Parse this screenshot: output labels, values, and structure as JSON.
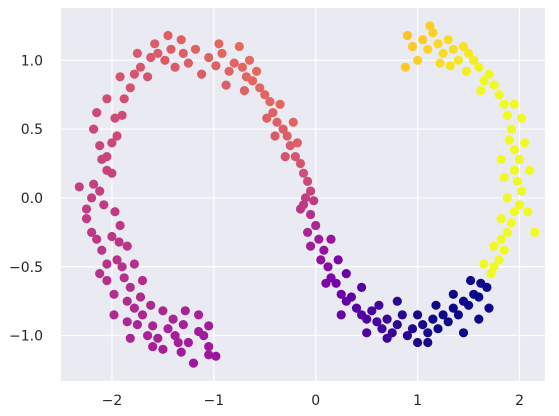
{
  "chart_data": {
    "type": "scatter",
    "title": "",
    "xlabel": "",
    "ylabel": "",
    "xlim": [
      -2.5,
      2.25
    ],
    "ylim": [
      -1.33,
      1.38
    ],
    "x_ticks": [
      -2,
      -1,
      0,
      1,
      2
    ],
    "x_tick_labels": [
      "−2",
      "−1",
      "0",
      "1",
      "2"
    ],
    "y_ticks": [
      -1.0,
      -0.5,
      0.0,
      0.5,
      1.0
    ],
    "y_tick_labels": [
      "−1.0",
      "−0.5",
      "0.0",
      "0.5",
      "1.0"
    ],
    "grid": true,
    "background_color": "#eaeaf2",
    "grid_color": "#ffffff",
    "colormap": "plasma",
    "colormap_stops": [
      "#0d0887",
      "#46039f",
      "#7201a8",
      "#9c179e",
      "#bd3786",
      "#d8576b",
      "#ed7953",
      "#fb9f3a",
      "#fdca26",
      "#f0f921"
    ],
    "series": [
      {
        "points": [
          [
            -1.2,
            -1.2
          ],
          [
            -1.05,
            -1.14
          ],
          [
            -0.98,
            -1.15
          ],
          [
            -1.05,
            -1.08
          ],
          [
            -1.1,
            -1.0
          ],
          [
            -1.05,
            -0.93
          ],
          [
            -1.15,
            -0.97
          ],
          [
            -1.25,
            -1.05
          ],
          [
            -1.3,
            -0.92
          ],
          [
            -1.35,
            -1.05
          ],
          [
            -1.38,
            -1.0
          ],
          [
            -1.45,
            -0.95
          ],
          [
            -1.5,
            -1.1
          ],
          [
            -1.55,
            -1.02
          ],
          [
            -1.6,
            -0.93
          ],
          [
            -1.65,
            -1.0
          ],
          [
            -1.7,
            -0.85
          ],
          [
            -1.75,
            -0.92
          ],
          [
            -1.78,
            -0.8
          ],
          [
            -1.85,
            -0.75
          ],
          [
            -1.82,
            -0.65
          ],
          [
            -1.88,
            -0.58
          ],
          [
            -1.9,
            -0.5
          ],
          [
            -1.95,
            -0.45
          ],
          [
            -2.05,
            -0.48
          ],
          [
            -2.1,
            -0.38
          ],
          [
            -2.15,
            -0.3
          ],
          [
            -2.2,
            -0.25
          ],
          [
            -2.05,
            -0.6
          ],
          [
            -1.98,
            -0.7
          ],
          [
            -1.93,
            -0.32
          ],
          [
            -2.0,
            -0.28
          ],
          [
            -1.92,
            -0.2
          ],
          [
            -1.97,
            -0.1
          ],
          [
            -2.08,
            -0.05
          ],
          [
            -2.12,
            0.05
          ],
          [
            -2.18,
            0.1
          ],
          [
            -2.25,
            -0.08
          ],
          [
            -2.32,
            0.08
          ],
          [
            -2.05,
            0.2
          ],
          [
            -2.1,
            0.28
          ],
          [
            -2.12,
            0.38
          ],
          [
            -2.18,
            0.5
          ],
          [
            -2.0,
            0.18
          ],
          [
            -2.05,
            0.3
          ],
          [
            -2.0,
            0.4
          ],
          [
            -1.95,
            0.45
          ],
          [
            -1.97,
            0.58
          ],
          [
            -1.9,
            0.6
          ],
          [
            -1.88,
            0.72
          ],
          [
            -1.82,
            0.8
          ],
          [
            -1.78,
            0.9
          ],
          [
            -1.72,
            0.95
          ],
          [
            -1.65,
            0.88
          ],
          [
            -1.62,
            1.02
          ],
          [
            -1.55,
            1.05
          ],
          [
            -1.48,
            1.0
          ],
          [
            -1.42,
            1.08
          ],
          [
            -1.38,
            0.95
          ],
          [
            -1.3,
            1.05
          ],
          [
            -1.25,
            0.98
          ],
          [
            -1.18,
            1.08
          ],
          [
            -1.12,
            0.9
          ],
          [
            -1.05,
            1.02
          ],
          [
            -0.98,
            0.96
          ],
          [
            -0.92,
            1.05
          ],
          [
            -0.85,
            0.92
          ],
          [
            -0.8,
            0.98
          ],
          [
            -0.72,
            0.95
          ],
          [
            -0.68,
            0.88
          ],
          [
            -0.62,
            0.85
          ],
          [
            -0.55,
            0.8
          ],
          [
            -0.5,
            0.75
          ],
          [
            -0.45,
            0.7
          ],
          [
            -0.42,
            0.62
          ],
          [
            -0.38,
            0.55
          ],
          [
            -0.32,
            0.5
          ],
          [
            -0.28,
            0.45
          ],
          [
            -0.25,
            0.38
          ],
          [
            -0.2,
            0.3
          ],
          [
            -0.15,
            0.25
          ],
          [
            -0.12,
            0.18
          ],
          [
            -0.08,
            0.12
          ],
          [
            -0.05,
            0.05
          ],
          [
            -0.02,
            -0.02
          ],
          [
            -0.1,
            0.0
          ],
          [
            -0.15,
            -0.08
          ],
          [
            -0.05,
            -0.12
          ],
          [
            0.0,
            -0.2
          ],
          [
            -0.08,
            -0.25
          ],
          [
            0.03,
            -0.3
          ],
          [
            0.08,
            -0.38
          ],
          [
            0.05,
            -0.45
          ],
          [
            0.12,
            -0.5
          ],
          [
            0.15,
            -0.58
          ],
          [
            0.2,
            -0.62
          ],
          [
            0.25,
            -0.7
          ],
          [
            0.3,
            -0.75
          ],
          [
            0.35,
            -0.72
          ],
          [
            0.4,
            -0.8
          ],
          [
            0.45,
            -0.85
          ],
          [
            0.5,
            -0.88
          ],
          [
            0.55,
            -0.82
          ],
          [
            0.6,
            -0.9
          ],
          [
            0.65,
            -0.95
          ],
          [
            0.7,
            -0.88
          ],
          [
            0.75,
            -0.98
          ],
          [
            0.8,
            -0.92
          ],
          [
            0.85,
            -0.85
          ],
          [
            0.9,
            -1.0
          ],
          [
            0.95,
            -0.95
          ],
          [
            1.0,
            -1.05
          ],
          [
            1.05,
            -0.92
          ],
          [
            1.1,
            -0.98
          ],
          [
            1.15,
            -0.88
          ],
          [
            1.2,
            -0.95
          ],
          [
            1.25,
            -0.85
          ],
          [
            1.3,
            -0.9
          ],
          [
            1.35,
            -0.8
          ],
          [
            1.4,
            -0.85
          ],
          [
            1.45,
            -0.75
          ],
          [
            1.5,
            -0.78
          ],
          [
            1.55,
            -0.7
          ],
          [
            1.6,
            -0.72
          ],
          [
            1.62,
            -0.62
          ],
          [
            1.68,
            -0.65
          ],
          [
            1.72,
            -0.55
          ],
          [
            1.75,
            -0.5
          ],
          [
            1.8,
            -0.45
          ],
          [
            1.85,
            -0.38
          ],
          [
            1.82,
            -0.3
          ],
          [
            1.88,
            -0.25
          ],
          [
            1.92,
            -0.18
          ],
          [
            1.95,
            -0.1
          ],
          [
            2.0,
            -0.05
          ],
          [
            2.02,
            0.05
          ],
          [
            1.98,
            0.12
          ],
          [
            1.95,
            0.2
          ],
          [
            2.0,
            0.28
          ],
          [
            1.95,
            0.35
          ],
          [
            1.9,
            0.42
          ],
          [
            1.92,
            0.5
          ],
          [
            1.88,
            0.6
          ],
          [
            1.85,
            0.68
          ],
          [
            1.8,
            0.75
          ],
          [
            1.75,
            0.82
          ],
          [
            1.7,
            0.9
          ],
          [
            1.65,
            0.85
          ],
          [
            1.6,
            0.95
          ],
          [
            1.55,
            1.0
          ],
          [
            1.5,
            1.05
          ],
          [
            1.45,
            1.1
          ],
          [
            1.4,
            1.0
          ],
          [
            1.35,
            1.08
          ],
          [
            1.3,
            1.15
          ],
          [
            1.25,
            1.05
          ],
          [
            1.2,
            1.12
          ],
          [
            1.15,
            1.2
          ],
          [
            1.1,
            1.08
          ],
          [
            1.05,
            1.15
          ],
          [
            1.0,
            1.0
          ],
          [
            0.95,
            1.1
          ],
          [
            0.9,
            1.18
          ],
          [
            0.88,
            0.95
          ],
          [
            1.12,
            1.25
          ],
          [
            1.22,
            0.98
          ],
          [
            1.32,
            0.96
          ],
          [
            1.48,
            0.92
          ],
          [
            1.62,
            0.78
          ],
          [
            1.95,
            0.68
          ],
          [
            2.02,
            0.58
          ],
          [
            2.05,
            0.4
          ],
          [
            2.1,
            0.2
          ],
          [
            2.15,
            -0.25
          ],
          [
            2.08,
            -0.1
          ],
          [
            1.7,
            -0.8
          ],
          [
            -1.5,
            -0.82
          ],
          [
            -1.62,
            -0.78
          ],
          [
            -1.72,
            -0.72
          ],
          [
            -1.4,
            -0.88
          ],
          [
            -1.28,
            -0.82
          ],
          [
            -1.58,
            1.12
          ],
          [
            -1.45,
            1.18
          ],
          [
            -1.32,
            1.15
          ],
          [
            -0.95,
            1.12
          ],
          [
            -0.75,
            1.1
          ],
          [
            -0.65,
            1.0
          ],
          [
            -0.58,
            0.92
          ],
          [
            -0.35,
            0.68
          ],
          [
            -0.22,
            0.55
          ],
          [
            -0.18,
            0.4
          ],
          [
            -0.3,
            0.3
          ],
          [
            -0.05,
            -0.35
          ],
          [
            0.15,
            -0.3
          ],
          [
            0.22,
            -0.45
          ],
          [
            0.3,
            -0.55
          ],
          [
            0.45,
            -0.65
          ],
          [
            0.62,
            -0.78
          ],
          [
            0.8,
            -0.75
          ],
          [
            1.0,
            -0.85
          ],
          [
            1.18,
            -0.78
          ],
          [
            1.35,
            -0.7
          ],
          [
            1.52,
            -0.6
          ],
          [
            1.65,
            -0.48
          ],
          [
            1.75,
            -0.35
          ],
          [
            1.82,
            -0.15
          ],
          [
            1.88,
            0.0
          ],
          [
            1.85,
            0.15
          ],
          [
            1.82,
            0.28
          ],
          [
            -2.2,
            0.0
          ],
          [
            -2.25,
            -0.15
          ],
          [
            -2.12,
            -0.55
          ],
          [
            -1.98,
            -0.85
          ],
          [
            -1.85,
            -0.9
          ],
          [
            -2.15,
            0.62
          ],
          [
            -2.05,
            0.72
          ],
          [
            -1.92,
            0.88
          ],
          [
            -1.75,
            1.05
          ],
          [
            -0.88,
            0.82
          ],
          [
            -0.7,
            0.78
          ],
          [
            -0.48,
            0.58
          ],
          [
            -0.4,
            0.45
          ],
          [
            -0.12,
            -0.05
          ],
          [
            0.1,
            -0.62
          ],
          [
            0.25,
            -0.85
          ],
          [
            0.5,
            -0.98
          ],
          [
            0.7,
            -1.02
          ],
          [
            1.1,
            -1.05
          ],
          [
            1.45,
            -0.98
          ],
          [
            1.6,
            -0.88
          ],
          [
            -1.15,
            -0.85
          ],
          [
            -1.32,
            -1.12
          ],
          [
            -1.6,
            -1.08
          ],
          [
            -1.82,
            -1.02
          ],
          [
            -1.7,
            -0.6
          ],
          [
            -1.78,
            -0.48
          ],
          [
            -1.85,
            -0.35
          ]
        ]
      }
    ]
  }
}
